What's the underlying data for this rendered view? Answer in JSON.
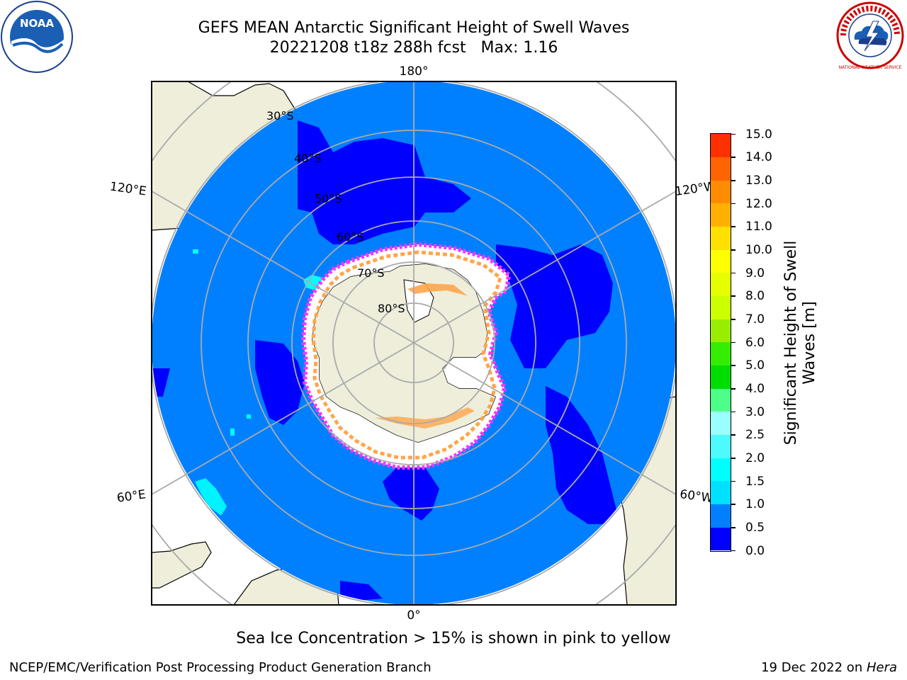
{
  "title": {
    "line1": "GEFS MEAN Antarctic Significant Height of Swell Waves",
    "line2": "20221208 t18z 288h fcst   Max: 1.16"
  },
  "logos": {
    "left": "noaa-logo",
    "left_text": "NOAA",
    "right": "national-weather-service-logo",
    "right_text": "NATIONAL WEATHER SERVICE"
  },
  "map": {
    "projection": "south-polar-stereographic",
    "longitude_labels": [
      "180°",
      "120°E",
      "120°W",
      "60°E",
      "60°W",
      "0°"
    ],
    "latitude_labels": [
      "30°S",
      "40°S",
      "50°S",
      "60°S",
      "70°S",
      "80°S"
    ],
    "colors": {
      "ocean_low": "#0000ff",
      "ocean_mid": "#0080ff",
      "land": "#eeeedb",
      "ice_high": "#ff33ff",
      "ice_mid": "#ffa54a",
      "grid": "#aaaaaa",
      "cyan": "#00ffff"
    }
  },
  "colorbar": {
    "label_line1": "Significant Height of Swell",
    "label_line2": "Waves [m]",
    "ticks": [
      "0.0",
      "0.5",
      "1.0",
      "1.5",
      "2.0",
      "2.5",
      "3.0",
      "4.0",
      "5.0",
      "6.0",
      "7.0",
      "8.0",
      "9.0",
      "10.0",
      "11.0",
      "12.0",
      "13.0",
      "14.0",
      "15.0"
    ],
    "colors": [
      "#0000ff",
      "#0080ff",
      "#00e0ff",
      "#00ffff",
      "#4dfaff",
      "#99ffff",
      "#4dff88",
      "#00dd00",
      "#33ee00",
      "#99ee00",
      "#ccff00",
      "#e6ff00",
      "#ffff00",
      "#ffe000",
      "#ffb000",
      "#ff8c00",
      "#ff6400",
      "#ff3000",
      "#ff0000"
    ]
  },
  "footnote": "Sea Ice Concentration > 15% is shown in pink to yellow",
  "credits": {
    "left": "NCEP/EMC/Verification Post Processing Product Generation Branch",
    "right_prefix": "19 Dec 2022 on ",
    "right_host": "Hera"
  }
}
